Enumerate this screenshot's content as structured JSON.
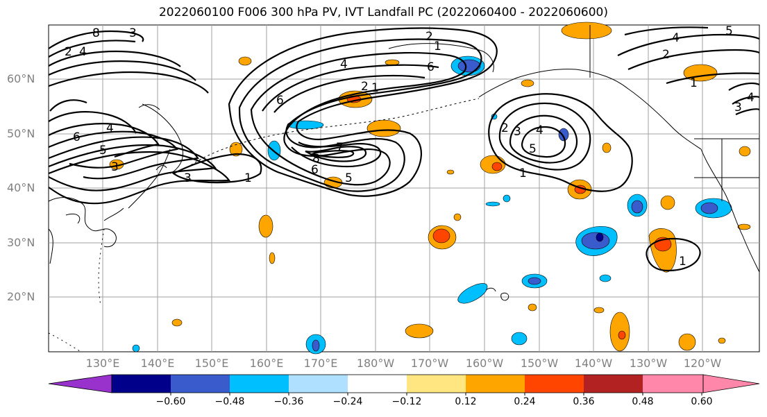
{
  "title": "2022060100 F006 300 hPa PV, IVT Landfall PC (2022060400 - 2022060600)",
  "lat_labels": [
    "60°N",
    "50°N",
    "40°N",
    "30°N",
    "20°N"
  ],
  "lon_labels": [
    "130°E",
    "140°E",
    "150°E",
    "160°E",
    "170°E",
    "180°W",
    "170°W",
    "160°W",
    "150°W",
    "140°W",
    "130°W",
    "120°W"
  ],
  "colorbar": {
    "ticks": [
      "−0.60",
      "−0.48",
      "−0.36",
      "−0.24",
      "−0.12",
      "0.12",
      "0.24",
      "0.36",
      "0.48",
      "0.60"
    ],
    "colors": [
      "#9932cc",
      "#00008b",
      "#3a5bcc",
      "#00bfff",
      "#b0e0ff",
      "#ffffff",
      "#ffe680",
      "#ffa500",
      "#ff4500",
      "#b22222",
      "#ff88aa"
    ]
  },
  "contour_labels": [
    "1",
    "2",
    "3",
    "4",
    "5",
    "6",
    "7",
    "8"
  ],
  "colors": {
    "grid": "#a0a0a0",
    "contour": "#000000",
    "coast": "#000000"
  }
}
